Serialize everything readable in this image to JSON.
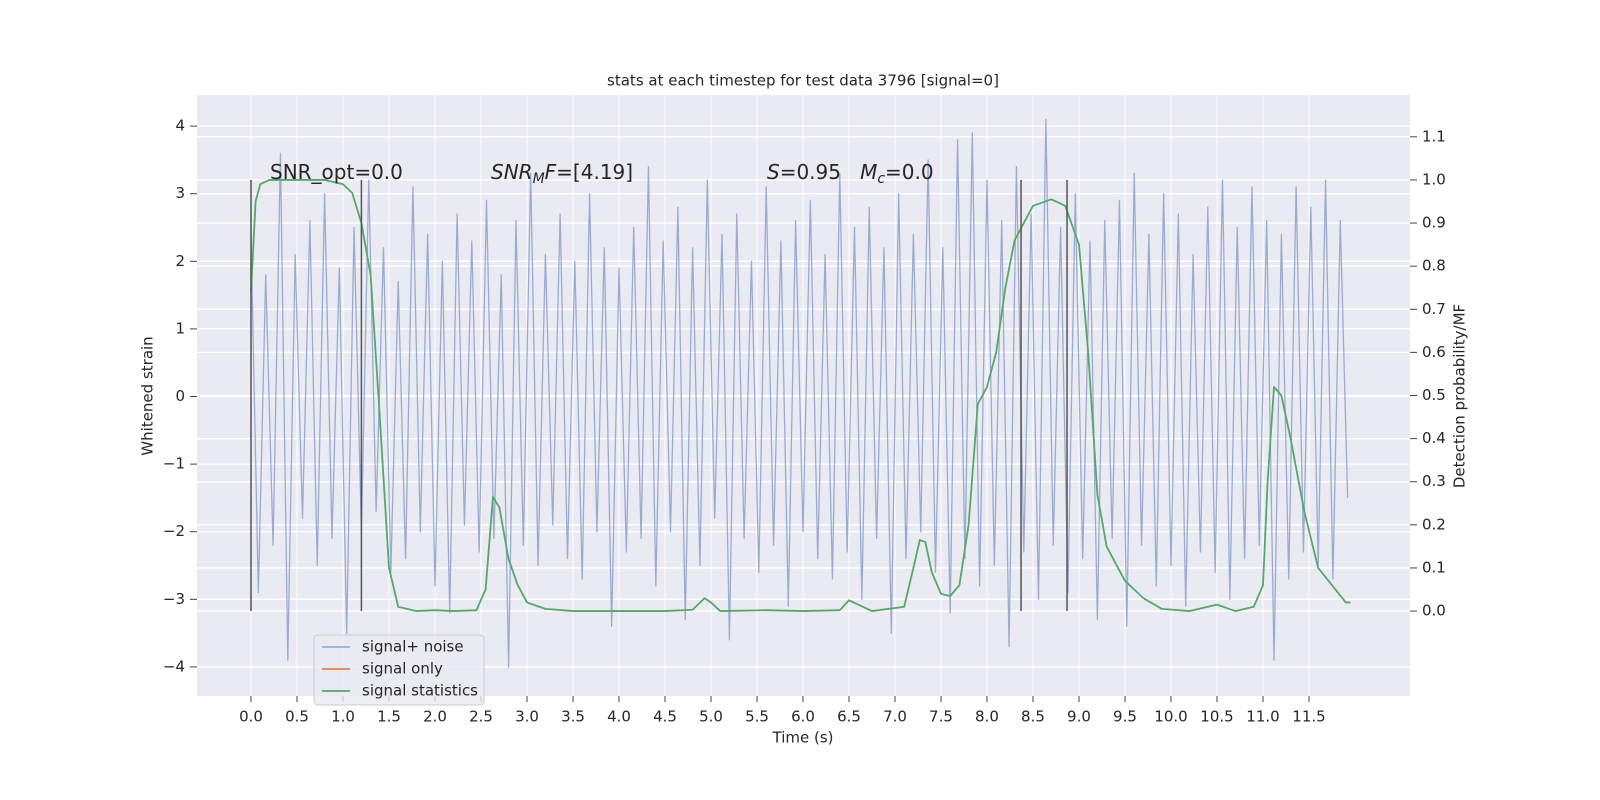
{
  "chart_data": {
    "type": "line",
    "title": "stats at each timestep for test data 3796 [signal=0]",
    "xlabel": "Time (s)",
    "ylabel": "Whitened strain",
    "y2label": "Detection probability/MF",
    "grid": true,
    "y2grid": true,
    "legend": "lower left",
    "xlim": [
      -0.587,
      12.598
    ],
    "xticks": [
      {
        "value": 0,
        "label": "0.0"
      },
      0.5,
      {
        "value": 1,
        "label": "1.0"
      },
      1.5,
      {
        "value": 2,
        "label": "2.0"
      },
      2.5,
      {
        "value": 3,
        "label": "3.0"
      },
      3.5,
      {
        "value": 4,
        "label": "4.0"
      },
      4.5,
      {
        "value": 5,
        "label": "5.0"
      },
      5.5,
      {
        "value": 6,
        "label": "6.0"
      },
      6.5,
      {
        "value": 7,
        "label": "7.0"
      },
      7.5,
      {
        "value": 8,
        "label": "8.0"
      },
      8.5,
      {
        "value": 9,
        "label": "9.0"
      },
      9.5,
      {
        "value": 10,
        "label": "10.0"
      },
      10.5,
      {
        "value": 11,
        "label": "11.0"
      },
      11.5
    ],
    "ylim": [
      -4.43,
      4.46
    ],
    "yticks": [
      {
        "value": -4,
        "label": "−4"
      },
      {
        "value": -3,
        "label": "−3"
      },
      {
        "value": -2,
        "label": "−2"
      },
      {
        "value": -1,
        "label": "−1"
      },
      0,
      1,
      2,
      3,
      4
    ],
    "y2lim": [
      -0.197,
      1.197
    ],
    "y2ticks": [
      {
        "value": 0,
        "label": "0.0"
      },
      0.1,
      0.2,
      0.3,
      0.4,
      0.5,
      0.6,
      0.7,
      0.8,
      0.9,
      {
        "value": 1,
        "label": "1.0"
      },
      1.1
    ],
    "series": [
      {
        "name": "signal+ noise",
        "color": "#9aabd3",
        "x": [
          0,
          0.08,
          0.16,
          0.24,
          0.32,
          0.4,
          0.48,
          0.56,
          0.64,
          0.72,
          0.8,
          0.88,
          0.96,
          1.04,
          1.12,
          1.2,
          1.28,
          1.36,
          1.44,
          1.52,
          1.6,
          1.68,
          1.76,
          1.84,
          1.92,
          2,
          2.08,
          2.16,
          2.24,
          2.32,
          2.4,
          2.48,
          2.56,
          2.64,
          2.72,
          2.8,
          2.88,
          2.96,
          3.04,
          3.12,
          3.2,
          3.28,
          3.36,
          3.44,
          3.52,
          3.6,
          3.68,
          3.76,
          3.84,
          3.92,
          4,
          4.08,
          4.16,
          4.24,
          4.32,
          4.4,
          4.48,
          4.56,
          4.64,
          4.72,
          4.8,
          4.88,
          4.96,
          5.04,
          5.12,
          5.2,
          5.28,
          5.36,
          5.44,
          5.52,
          5.6,
          5.68,
          5.76,
          5.84,
          5.92,
          6,
          6.08,
          6.16,
          6.24,
          6.32,
          6.4,
          6.48,
          6.56,
          6.64,
          6.72,
          6.8,
          6.88,
          6.96,
          7.04,
          7.12,
          7.2,
          7.28,
          7.36,
          7.44,
          7.52,
          7.6,
          7.68,
          7.76,
          7.84,
          7.92,
          8,
          8.08,
          8.16,
          8.24,
          8.32,
          8.4,
          8.48,
          8.56,
          8.64,
          8.72,
          8.8,
          8.88,
          8.96,
          9.04,
          9.12,
          9.2,
          9.28,
          9.36,
          9.44,
          9.52,
          9.6,
          9.68,
          9.76,
          9.84,
          9.92,
          10,
          10.08,
          10.16,
          10.24,
          10.32,
          10.4,
          10.48,
          10.56,
          10.64,
          10.72,
          10.8,
          10.88,
          10.96,
          11.04,
          11.12,
          11.2,
          11.28,
          11.36,
          11.44,
          11.52,
          11.6,
          11.68,
          11.76,
          11.84,
          11.92
        ],
        "values": [
          2.4,
          -2.9,
          1.8,
          -2.2,
          3.6,
          -3.9,
          2.1,
          -1.8,
          2.6,
          -2.5,
          3.0,
          -2.1,
          1.9,
          -3.5,
          2.5,
          -2.0,
          3.2,
          -1.7,
          2.2,
          -2.6,
          1.7,
          -2.4,
          3.1,
          -2.0,
          2.4,
          -2.8,
          2.0,
          -3.2,
          2.7,
          -1.9,
          2.3,
          -2.3,
          2.9,
          -2.1,
          1.8,
          -4.0,
          2.6,
          -2.2,
          3.3,
          -2.5,
          2.1,
          -1.9,
          2.7,
          -2.4,
          2.0,
          -2.7,
          3.0,
          -2.0,
          2.2,
          -3.4,
          1.9,
          -2.3,
          2.5,
          -2.1,
          3.4,
          -2.8,
          2.3,
          -2.0,
          2.8,
          -3.3,
          2.2,
          -2.5,
          3.2,
          -1.8,
          2.4,
          -3.6,
          2.7,
          -2.1,
          2.0,
          -2.6,
          3.1,
          -2.2,
          2.3,
          -3.1,
          2.6,
          -2.0,
          2.9,
          -2.4,
          2.1,
          -2.7,
          3.3,
          -2.3,
          2.5,
          -3.0,
          2.8,
          -2.1,
          2.2,
          -3.5,
          3.0,
          -2.4,
          2.4,
          -2.0,
          3.5,
          -2.6,
          2.2,
          -3.2,
          3.8,
          -2.4,
          3.9,
          -2.8,
          3.2,
          -2.5,
          2.6,
          -3.7,
          3.4,
          -2.3,
          2.7,
          -3.0,
          4.1,
          -2.2,
          2.5,
          -2.9,
          3.0,
          -2.4,
          2.3,
          -3.3,
          2.6,
          -2.1,
          2.9,
          -3.4,
          3.3,
          -2.2,
          2.4,
          -2.8,
          3.0,
          -2.5,
          2.7,
          -3.1,
          2.1,
          -2.3,
          2.8,
          -2.6,
          3.2,
          -3.0,
          2.5,
          -2.4,
          3.1,
          -2.2,
          2.6,
          -3.9,
          2.4,
          -2.7,
          3.1,
          -2.3,
          2.8,
          -2.5,
          3.2,
          -2.7,
          2.6,
          -1.5
        ]
      },
      {
        "name": "signal only",
        "color": "#dd8452",
        "x": [],
        "values": []
      },
      {
        "name": "signal statistics",
        "color": "#55a868",
        "axis": "y2",
        "x": [
          0,
          0.05,
          0.1,
          0.2,
          0.5,
          0.8,
          1.0,
          1.1,
          1.2,
          1.3,
          1.4,
          1.5,
          1.6,
          1.8,
          2.0,
          2.2,
          2.45,
          2.55,
          2.63,
          2.7,
          2.8,
          2.9,
          3.0,
          3.2,
          3.5,
          4.5,
          4.8,
          4.93,
          5.0,
          5.1,
          5.6,
          6.0,
          6.4,
          6.5,
          6.6,
          6.75,
          7.1,
          7.2,
          7.27,
          7.33,
          7.4,
          7.5,
          7.6,
          7.7,
          7.8,
          7.9,
          8.0,
          8.1,
          8.2,
          8.3,
          8.5,
          8.7,
          8.85,
          9.0,
          9.1,
          9.2,
          9.3,
          9.5,
          9.7,
          9.9,
          10.2,
          10.4,
          10.5,
          10.7,
          10.9,
          11.0,
          11.05,
          11.12,
          11.2,
          11.3,
          11.45,
          11.6,
          11.75,
          11.9,
          11.95
        ],
        "values": [
          0.74,
          0.95,
          0.99,
          1.0,
          1.0,
          1.0,
          0.99,
          0.97,
          0.9,
          0.78,
          0.45,
          0.1,
          0.01,
          0.0,
          0.002,
          0.0,
          0.002,
          0.05,
          0.265,
          0.24,
          0.12,
          0.06,
          0.02,
          0.005,
          0.0,
          0.0,
          0.003,
          0.03,
          0.02,
          0.0,
          0.002,
          0.0,
          0.002,
          0.025,
          0.015,
          0.0,
          0.01,
          0.1,
          0.165,
          0.16,
          0.09,
          0.04,
          0.035,
          0.06,
          0.2,
          0.48,
          0.52,
          0.6,
          0.75,
          0.86,
          0.94,
          0.955,
          0.94,
          0.85,
          0.6,
          0.27,
          0.15,
          0.07,
          0.03,
          0.005,
          0.0,
          0.01,
          0.015,
          0.0,
          0.01,
          0.06,
          0.3,
          0.52,
          0.5,
          0.4,
          0.23,
          0.1,
          0.06,
          0.02,
          0.02
        ]
      }
    ],
    "vlines": {
      "color": "#555555",
      "x": [
        0.0,
        1.2,
        8.37,
        8.87
      ],
      "y2range": [
        0,
        1
      ]
    },
    "annotations": [
      [
        {
          "t": "SNR_opt=0.0"
        }
      ],
      [
        {
          "t": "SNR",
          "italic": true
        },
        {
          "t": "M",
          "italic": true,
          "sub": true
        },
        {
          "t": "F",
          "italic": true
        },
        {
          "t": "=[4.19]"
        }
      ],
      [
        {
          "t": "S",
          "italic": true
        },
        {
          "t": "=0.95   "
        },
        {
          "t": "M",
          "italic": true
        },
        {
          "t": "c",
          "italic": true,
          "sub": true
        },
        {
          "t": "=0.0"
        }
      ]
    ]
  }
}
